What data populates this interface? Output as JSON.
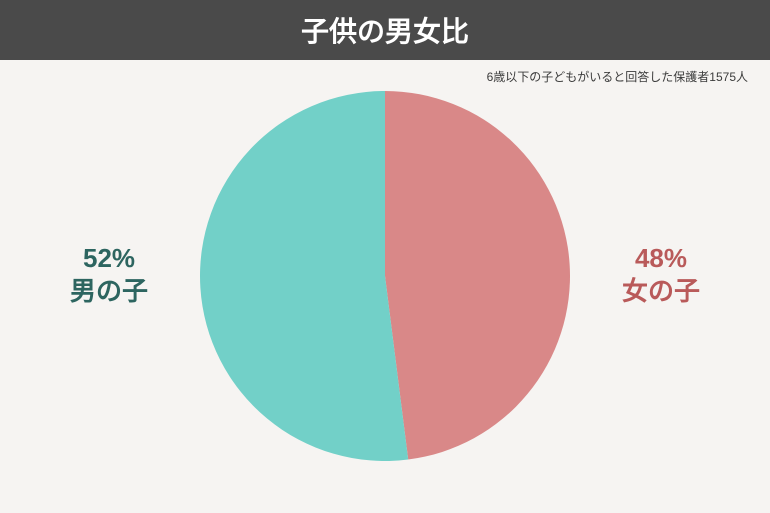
{
  "header": {
    "title": "子供の男女比",
    "background_color": "#4a4a4a",
    "text_color": "#ffffff",
    "fontsize": 28
  },
  "subtitle": {
    "text": "6歳以下の子どもがいると回答した保護者1575人",
    "color": "#3b3b3b",
    "fontsize": 12
  },
  "chart": {
    "type": "pie",
    "background_color": "#f6f4f2",
    "diameter": 370,
    "slices": [
      {
        "label": "女の子",
        "value": 48,
        "color": "#d98888",
        "label_color": "#b95a5a"
      },
      {
        "label": "男の子",
        "value": 52,
        "color": "#72d0c8",
        "label_color": "#2d6560"
      }
    ],
    "label_fontsize": 26,
    "label_left": {
      "percent": "52%",
      "name": "男の子"
    },
    "label_right": {
      "percent": "48%",
      "name": "女の子"
    }
  }
}
